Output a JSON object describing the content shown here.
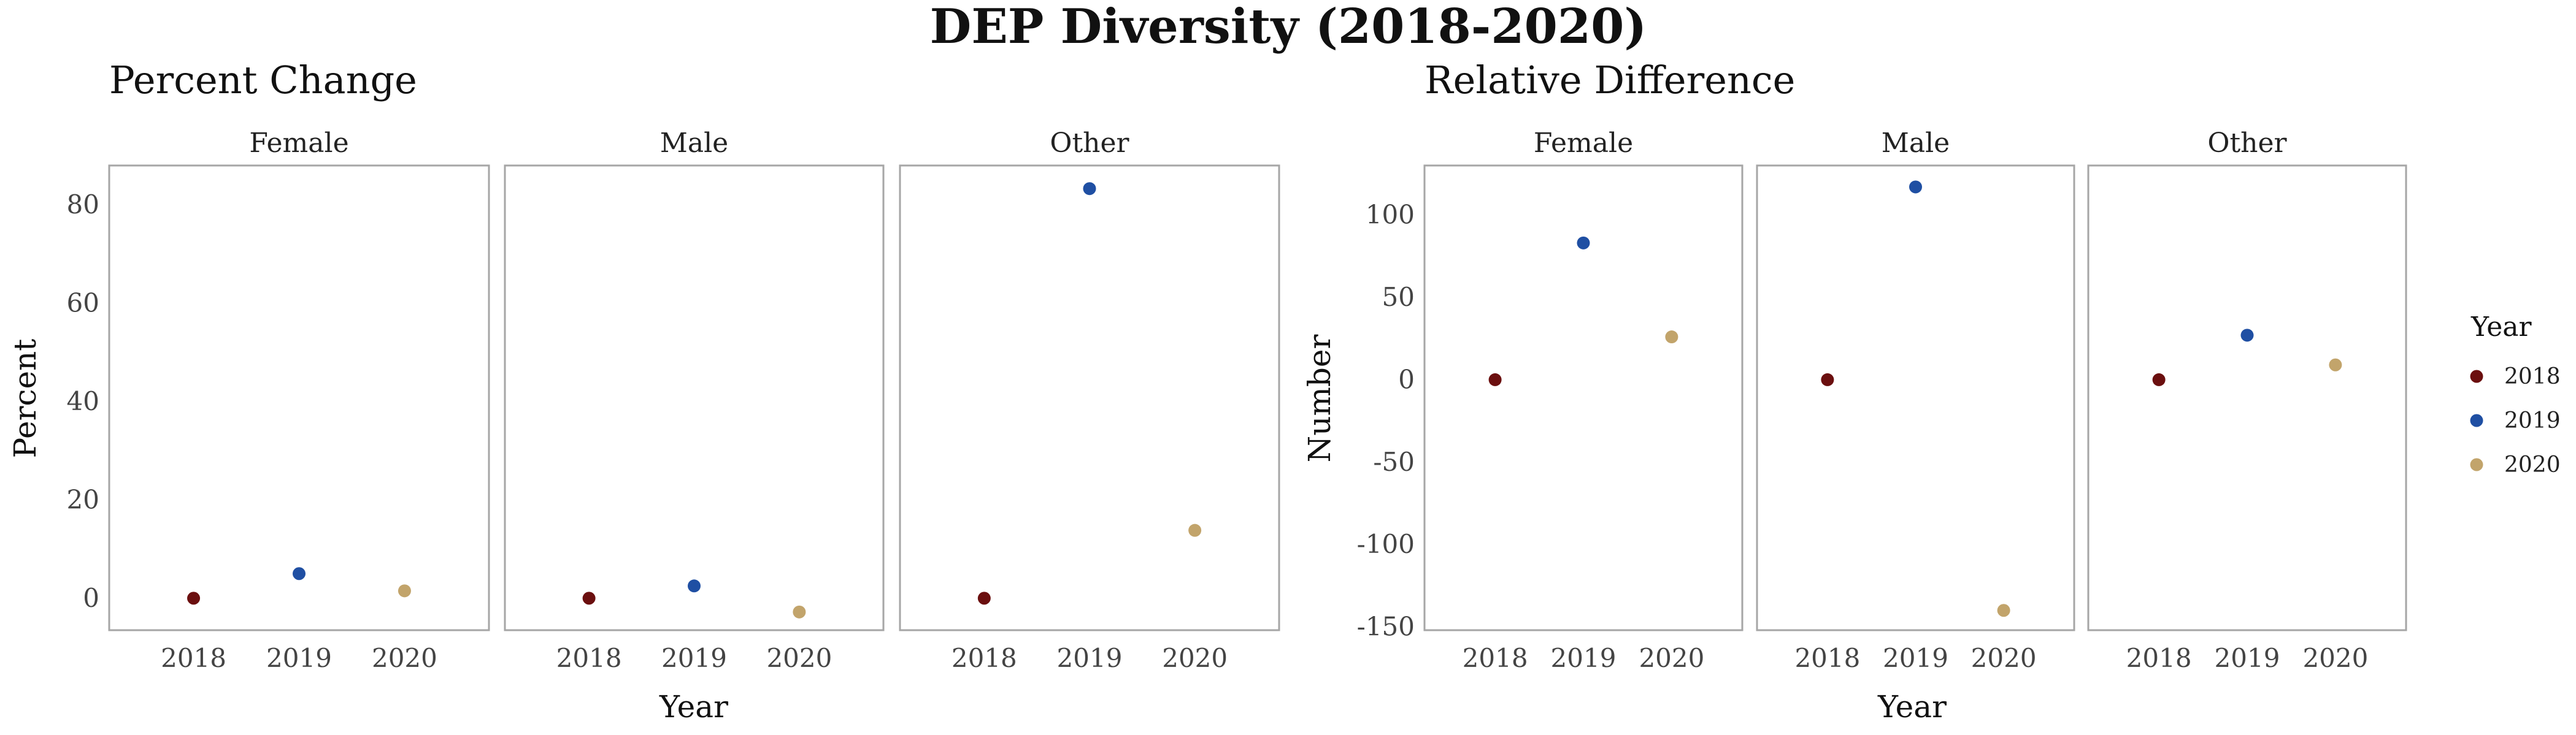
{
  "title": "DEP Diversity (2018-2020)",
  "colors": {
    "2018": "#6b0f0f",
    "2019": "#1f4fa3",
    "2020": "#c2a46b"
  },
  "chart_data": [
    {
      "type": "scatter",
      "subtitle": "Percent Change",
      "xlabel": "Year",
      "ylabel": "Percent",
      "ylim": [
        -6.5,
        88
      ],
      "yticks": [
        0,
        20,
        40,
        60,
        80
      ],
      "categories": [
        "2018",
        "2019",
        "2020"
      ],
      "facets": [
        {
          "name": "Female",
          "values": [
            0,
            5,
            1.5
          ]
        },
        {
          "name": "Male",
          "values": [
            0,
            2.5,
            -2.8
          ]
        },
        {
          "name": "Other",
          "values": [
            0,
            83.3,
            13.8
          ]
        }
      ]
    },
    {
      "type": "scatter",
      "subtitle": "Relative Difference",
      "xlabel": "Year",
      "ylabel": "Number",
      "ylim": [
        -152,
        130
      ],
      "yticks": [
        -150,
        -100,
        -50,
        0,
        50,
        100
      ],
      "categories": [
        "2018",
        "2019",
        "2020"
      ],
      "facets": [
        {
          "name": "Female",
          "values": [
            0,
            83,
            26
          ]
        },
        {
          "name": "Male",
          "values": [
            0,
            117,
            -140
          ]
        },
        {
          "name": "Other",
          "values": [
            0,
            27,
            9
          ]
        }
      ]
    }
  ],
  "legend": {
    "title": "Year",
    "placement": "right",
    "items": [
      "2018",
      "2019",
      "2020"
    ]
  }
}
